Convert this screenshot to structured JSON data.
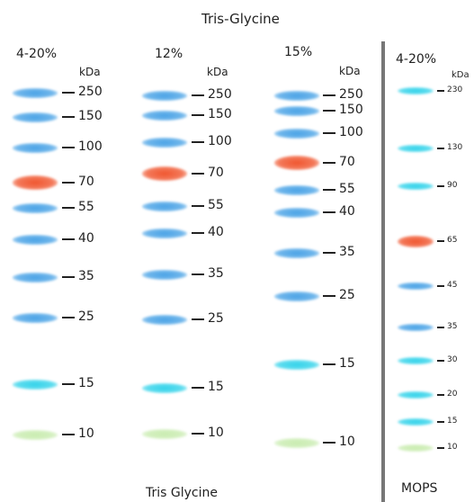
{
  "header": {
    "title": "Tris-Glycine"
  },
  "footer": {
    "left_caption": "Tris Glycine",
    "right_caption": "MOPS"
  },
  "colors": {
    "blue": "#4aa3e6",
    "orange": "#f0562f",
    "green": "#c9ecb0",
    "cyan": "#34d3ea"
  },
  "lanes": [
    {
      "name": "4-20%",
      "unit": "kDa",
      "bands": [
        {
          "label": "250",
          "color": "blue"
        },
        {
          "label": "150",
          "color": "blue"
        },
        {
          "label": "100",
          "color": "blue"
        },
        {
          "label": "70",
          "color": "orange"
        },
        {
          "label": "55",
          "color": "blue"
        },
        {
          "label": "40",
          "color": "blue"
        },
        {
          "label": "35",
          "color": "blue"
        },
        {
          "label": "25",
          "color": "blue"
        },
        {
          "label": "15",
          "color": "cyan"
        },
        {
          "label": "10",
          "color": "green"
        }
      ]
    },
    {
      "name": "12%",
      "unit": "kDa",
      "bands": [
        {
          "label": "250",
          "color": "blue"
        },
        {
          "label": "150",
          "color": "blue"
        },
        {
          "label": "100",
          "color": "blue"
        },
        {
          "label": "70",
          "color": "orange"
        },
        {
          "label": "55",
          "color": "blue"
        },
        {
          "label": "40",
          "color": "blue"
        },
        {
          "label": "35",
          "color": "blue"
        },
        {
          "label": "25",
          "color": "blue"
        },
        {
          "label": "15",
          "color": "cyan"
        },
        {
          "label": "10",
          "color": "green"
        }
      ]
    },
    {
      "name": "15%",
      "unit": "kDa",
      "bands": [
        {
          "label": "250",
          "color": "blue"
        },
        {
          "label": "150",
          "color": "blue"
        },
        {
          "label": "100",
          "color": "blue"
        },
        {
          "label": "70",
          "color": "orange"
        },
        {
          "label": "55",
          "color": "blue"
        },
        {
          "label": "40",
          "color": "blue"
        },
        {
          "label": "35",
          "color": "blue"
        },
        {
          "label": "25",
          "color": "blue"
        },
        {
          "label": "15",
          "color": "cyan"
        },
        {
          "label": "10",
          "color": "green"
        }
      ]
    },
    {
      "name": "4-20%",
      "unit": "kDa",
      "bands": [
        {
          "label": "230",
          "color": "cyan"
        },
        {
          "label": "130",
          "color": "cyan"
        },
        {
          "label": "90",
          "color": "cyan"
        },
        {
          "label": "65",
          "color": "orange"
        },
        {
          "label": "45",
          "color": "blue"
        },
        {
          "label": "35",
          "color": "blue"
        },
        {
          "label": "30",
          "color": "cyan"
        },
        {
          "label": "20",
          "color": "cyan"
        },
        {
          "label": "15",
          "color": "cyan"
        },
        {
          "label": "10",
          "color": "green"
        }
      ]
    }
  ]
}
